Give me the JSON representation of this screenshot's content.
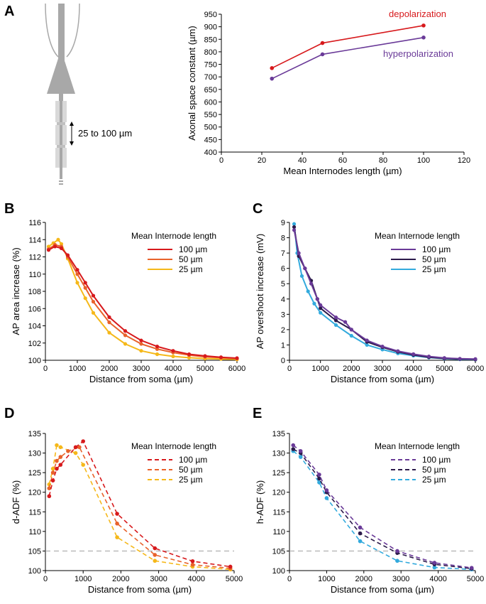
{
  "panel_letters": [
    "A",
    "B",
    "C",
    "D",
    "E"
  ],
  "schematic": {
    "spacing_label": "25 to 100 µm"
  },
  "colors": {
    "depol_100": "#d7191c",
    "depol_50": "#e8622b",
    "depol_25": "#f5b81a",
    "hyper_100": "#6a3a98",
    "hyper_50": "#2b1a4a",
    "hyper_25": "#33aadd",
    "grid_dash": "#aaaaaa",
    "axon": "#a8a8a8",
    "axon_light": "#d9d9d9"
  },
  "chart_data": [
    {
      "id": "A",
      "type": "line",
      "xlabel": "Mean Internodes length (µm)",
      "ylabel": "Axonal space constant (µm)",
      "xlim": [
        0,
        120
      ],
      "ylim": [
        400,
        950
      ],
      "xticks": [
        0,
        20,
        40,
        60,
        80,
        100,
        120
      ],
      "yticks": [
        400,
        450,
        500,
        550,
        600,
        650,
        700,
        750,
        800,
        850,
        900,
        950
      ],
      "series": [
        {
          "name": "depolarization",
          "color": "#d7191c",
          "x": [
            25,
            50,
            100
          ],
          "y": [
            735,
            835,
            905
          ]
        },
        {
          "name": "hyperpolarization",
          "color": "#6a3a98",
          "x": [
            25,
            50,
            100
          ],
          "y": [
            693,
            790,
            857
          ]
        }
      ]
    },
    {
      "id": "B",
      "type": "line",
      "xlabel": "Distance from soma (µm)",
      "ylabel": "AP area increase (%)",
      "xlim": [
        0,
        6000
      ],
      "ylim": [
        100,
        116
      ],
      "xticks": [
        0,
        1000,
        2000,
        3000,
        4000,
        5000,
        6000
      ],
      "yticks": [
        100,
        102,
        104,
        106,
        108,
        110,
        112,
        114,
        116
      ],
      "legend_title": "Mean Internode length",
      "series": [
        {
          "name": "100 µm",
          "color": "#d7191c",
          "x": [
            100,
            300,
            500,
            700,
            1000,
            1250,
            1500,
            2000,
            2500,
            3000,
            3500,
            4000,
            4500,
            5000,
            5500,
            6000
          ],
          "y": [
            112.8,
            113.2,
            113.0,
            112.2,
            110.5,
            109.0,
            107.5,
            105.0,
            103.4,
            102.3,
            101.6,
            101.1,
            100.7,
            100.5,
            100.35,
            100.25
          ]
        },
        {
          "name": "50 µm",
          "color": "#e8622b",
          "x": [
            100,
            300,
            500,
            700,
            1000,
            1250,
            1500,
            2000,
            2500,
            3000,
            3500,
            4000,
            4500,
            5000,
            5500,
            6000
          ],
          "y": [
            112.9,
            113.4,
            113.2,
            112.0,
            110.0,
            108.4,
            106.8,
            104.4,
            102.9,
            101.9,
            101.3,
            100.9,
            100.6,
            100.4,
            100.3,
            100.2
          ]
        },
        {
          "name": "25 µm",
          "color": "#f5b81a",
          "x": [
            100,
            250,
            400,
            500,
            700,
            1000,
            1250,
            1500,
            2000,
            2500,
            3000,
            3500,
            4000,
            4500,
            5000,
            5500,
            6000
          ],
          "y": [
            113.2,
            113.6,
            114.0,
            113.5,
            111.8,
            109.0,
            107.2,
            105.5,
            103.2,
            101.9,
            101.1,
            100.7,
            100.45,
            100.3,
            100.2,
            100.15,
            100.1
          ]
        }
      ]
    },
    {
      "id": "C",
      "type": "line",
      "xlabel": "Distance from soma (µm)",
      "ylabel": "AP overshoot increase (mV)",
      "xlim": [
        0,
        6000
      ],
      "ylim": [
        0,
        9
      ],
      "xticks": [
        0,
        1000,
        2000,
        3000,
        4000,
        5000,
        6000
      ],
      "yticks": [
        0,
        1,
        2,
        3,
        4,
        5,
        6,
        7,
        8,
        9
      ],
      "legend_title": "Mean Internode length",
      "series": [
        {
          "name": "100 µm",
          "color": "#6a3a98",
          "x": [
            150,
            300,
            500,
            700,
            900,
            1000,
            1500,
            1800,
            2000,
            2500,
            3000,
            3500,
            4000,
            4500,
            5000,
            5500,
            6000
          ],
          "y": [
            8.5,
            7.0,
            6.0,
            5.0,
            4.0,
            3.6,
            2.8,
            2.5,
            2.0,
            1.3,
            0.9,
            0.6,
            0.4,
            0.25,
            0.15,
            0.1,
            0.08
          ]
        },
        {
          "name": "50 µm",
          "color": "#2b1a4a",
          "x": [
            150,
            300,
            500,
            700,
            900,
            1000,
            1500,
            2000,
            2500,
            3000,
            3500,
            4000,
            4500,
            5000,
            5500,
            6000
          ],
          "y": [
            8.7,
            6.8,
            6.0,
            5.2,
            4.0,
            3.4,
            2.6,
            2.0,
            1.2,
            0.85,
            0.55,
            0.35,
            0.2,
            0.12,
            0.08,
            0.05
          ]
        },
        {
          "name": "25 µm",
          "color": "#33aadd",
          "x": [
            150,
            250,
            400,
            600,
            800,
            1000,
            1500,
            2000,
            2500,
            3000,
            3500,
            4000,
            4500,
            5000,
            5500,
            6000
          ],
          "y": [
            8.9,
            7.0,
            5.5,
            4.5,
            3.7,
            3.1,
            2.3,
            1.6,
            1.0,
            0.7,
            0.45,
            0.3,
            0.18,
            0.1,
            0.06,
            0.04
          ]
        }
      ]
    },
    {
      "id": "D",
      "type": "line",
      "xlabel": "Distance from soma (µm)",
      "ylabel": "d-ADF (%)",
      "xlim": [
        0,
        5000
      ],
      "ylim": [
        100,
        135
      ],
      "xticks": [
        0,
        1000,
        2000,
        3000,
        4000,
        5000
      ],
      "yticks": [
        100,
        105,
        110,
        115,
        120,
        125,
        130,
        135
      ],
      "reference_line": 105,
      "legend_title": "Mean Internode length",
      "series": [
        {
          "name": "100 µm",
          "color": "#d7191c",
          "x": [
            100,
            200,
            300,
            400,
            800,
            1000,
            1900,
            2900,
            3900,
            4900
          ],
          "y": [
            119,
            123,
            126,
            127,
            131.5,
            133,
            114.5,
            105.7,
            102.4,
            101
          ]
        },
        {
          "name": "50 µm",
          "color": "#e8622b",
          "x": [
            100,
            200,
            300,
            400,
            600,
            900,
            1900,
            2900,
            3900,
            4900
          ],
          "y": [
            121,
            125,
            128,
            129,
            130.5,
            131.5,
            112,
            104,
            101.5,
            100.6
          ]
        },
        {
          "name": "25 µm",
          "color": "#f5b81a",
          "x": [
            100,
            200,
            300,
            400,
            800,
            1000,
            1900,
            2900,
            3900,
            4900
          ],
          "y": [
            122,
            126,
            132,
            131.5,
            130,
            127,
            108.5,
            102.5,
            101,
            100.3
          ]
        }
      ]
    },
    {
      "id": "E",
      "type": "line",
      "xlabel": "Distance from soma (µm)",
      "ylabel": "h-ADF (%)",
      "xlim": [
        0,
        5000
      ],
      "ylim": [
        100,
        135
      ],
      "xticks": [
        0,
        1000,
        2000,
        3000,
        4000,
        5000
      ],
      "yticks": [
        100,
        105,
        110,
        115,
        120,
        125,
        130,
        135
      ],
      "reference_line": 105,
      "legend_title": "Mean Internode length",
      "series": [
        {
          "name": "100 µm",
          "color": "#6a3a98",
          "x": [
            100,
            300,
            800,
            1000,
            1900,
            2900,
            3900,
            4900
          ],
          "y": [
            132,
            130.5,
            124.5,
            120.5,
            111,
            105,
            102,
            100.7
          ]
        },
        {
          "name": "50 µm",
          "color": "#2b1a4a",
          "x": [
            100,
            300,
            800,
            1000,
            1900,
            2900,
            3900,
            4900
          ],
          "y": [
            131,
            130,
            123.5,
            120,
            109.5,
            104.5,
            101.6,
            100.5
          ]
        },
        {
          "name": "25 µm",
          "color": "#33aadd",
          "x": [
            100,
            300,
            800,
            1000,
            1900,
            2900,
            3900,
            4900
          ],
          "y": [
            130.5,
            129,
            122.5,
            118.5,
            107.5,
            102.5,
            100.8,
            100.3
          ]
        }
      ]
    }
  ]
}
